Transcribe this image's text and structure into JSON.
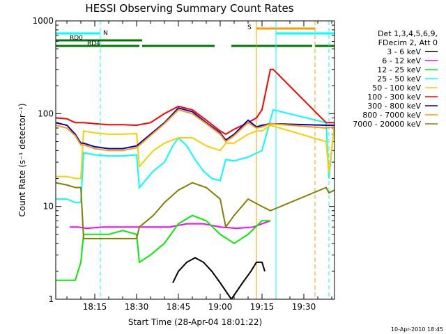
{
  "chart_data": {
    "type": "line",
    "title": "HESSI Observing Summary Count Rates",
    "xlabel": "Start Time (28-Apr-04 18:01:22)",
    "ylabel": "Count Rate (s⁻¹ detector⁻¹)",
    "y_scale": "log",
    "ylim": [
      1,
      1000
    ],
    "xlim": [
      "18:01",
      "19:41"
    ],
    "x_ticks": [
      "18:15",
      "18:30",
      "18:45",
      "19:00",
      "19:15",
      "19:30"
    ],
    "y_ticks": [
      "1",
      "10",
      "100",
      "1000"
    ],
    "footer": "10-Apr-2010 18:45",
    "legend_header": [
      "Det 1,3,4,5,6,9,",
      "FDecim 2, Att 0"
    ],
    "legend_placement": "right",
    "series": [
      {
        "name": "3 - 6 keV",
        "color": "#000000",
        "x": [
          "18:43",
          "18:45",
          "18:48",
          "18:51",
          "18:54",
          "18:57",
          "19:00",
          "19:04",
          "19:08",
          "19:11",
          "19:13",
          "19:15",
          "19:16"
        ],
        "y": [
          1.5,
          2,
          2.5,
          2.8,
          2.5,
          2,
          1.5,
          1,
          1.5,
          2,
          2.5,
          2.5,
          2
        ]
      },
      {
        "name": "6 - 12 keV",
        "color": "#ff00ff",
        "x": [
          "18:06",
          "18:09",
          "18:12",
          "18:18",
          "18:24",
          "18:30",
          "18:36",
          "18:42",
          "18:48",
          "18:54",
          "19:00",
          "19:06",
          "19:12",
          "19:15",
          "19:18"
        ],
        "y": [
          6,
          6,
          5.8,
          6,
          6,
          6,
          6,
          6,
          6.5,
          6.5,
          6,
          5.8,
          6,
          6.5,
          7
        ]
      },
      {
        "name": "12 - 25 keV",
        "color": "#00ee00",
        "x": [
          "18:01",
          "18:08",
          "18:10",
          "18:11",
          "18:15",
          "18:20",
          "18:25",
          "18:30",
          "18:31",
          "18:35",
          "18:40",
          "18:45",
          "18:50",
          "18:55",
          "19:00",
          "19:05",
          "19:10",
          "19:15",
          "19:18"
        ],
        "y": [
          1.6,
          1.6,
          2.5,
          5,
          5,
          5,
          5.5,
          5,
          2.5,
          3,
          4,
          6.5,
          8,
          7,
          5,
          4,
          5,
          7,
          7
        ]
      },
      {
        "name": "25 - 50 keV",
        "color": "#00ffff",
        "x": [
          "18:01",
          "18:05",
          "18:08",
          "18:10",
          "18:11",
          "18:15",
          "18:20",
          "18:25",
          "18:30",
          "18:31",
          "18:36",
          "18:40",
          "18:43",
          "18:45",
          "18:48",
          "18:51",
          "18:54",
          "18:57",
          "19:00",
          "19:02",
          "19:05",
          "19:10",
          "19:15",
          "19:19",
          "19:38",
          "19:39",
          "19:41"
        ],
        "y": [
          12,
          12,
          11,
          11,
          38,
          36,
          35,
          35,
          36,
          16,
          24,
          30,
          45,
          55,
          45,
          32,
          24,
          20,
          19,
          32,
          31,
          34,
          40,
          110,
          80,
          20,
          80
        ]
      },
      {
        "name": "50 - 100 keV",
        "color": "#ffcc00",
        "x": [
          "18:01",
          "18:05",
          "18:08",
          "18:10",
          "18:11",
          "18:15",
          "18:20",
          "18:25",
          "18:30",
          "18:31",
          "18:36",
          "18:40",
          "18:45",
          "18:50",
          "18:55",
          "19:00",
          "19:02",
          "19:05",
          "19:10",
          "19:13",
          "19:15",
          "19:18",
          "19:38",
          "19:39",
          "19:41"
        ],
        "y": [
          21,
          21,
          20,
          20,
          65,
          62,
          60,
          60,
          61,
          27,
          40,
          48,
          55,
          55,
          45,
          40,
          48,
          48,
          60,
          65,
          65,
          75,
          50,
          23,
          75
        ]
      },
      {
        "name": "100 - 300 keV",
        "color": "#ff0000",
        "x": [
          "18:01",
          "18:05",
          "18:08",
          "18:10",
          "18:11",
          "18:15",
          "18:20",
          "18:25",
          "18:30",
          "18:35",
          "18:40",
          "18:45",
          "18:50",
          "18:55",
          "19:00",
          "19:02",
          "19:05",
          "19:10",
          "19:13",
          "19:15",
          "19:18",
          "19:19",
          "19:38",
          "19:41"
        ],
        "y": [
          90,
          88,
          80,
          80,
          80,
          78,
          76,
          76,
          75,
          80,
          100,
          120,
          110,
          85,
          65,
          60,
          68,
          80,
          90,
          110,
          300,
          300,
          80,
          80
        ]
      },
      {
        "name": "300 - 800 keV",
        "color": "#0000cc",
        "x": [
          "18:01",
          "18:05",
          "18:08",
          "18:10",
          "18:11",
          "18:15",
          "18:20",
          "18:25",
          "18:30",
          "18:35",
          "18:40",
          "18:45",
          "18:50",
          "18:55",
          "19:00",
          "19:02",
          "19:05",
          "19:10",
          "19:13",
          "19:15",
          "19:18",
          "19:38",
          "19:41"
        ],
        "y": [
          80,
          75,
          60,
          48,
          48,
          44,
          42,
          42,
          45,
          60,
          80,
          115,
          105,
          80,
          62,
          52,
          60,
          85,
          72,
          75,
          78,
          75,
          75
        ]
      },
      {
        "name": "800 - 7000 keV",
        "color": "#ff9900",
        "x": [
          "18:01",
          "18:05",
          "18:08",
          "18:10",
          "18:11",
          "18:15",
          "18:20",
          "18:25",
          "18:30",
          "18:35",
          "18:40",
          "18:45",
          "18:50",
          "18:55",
          "19:00",
          "19:02",
          "19:05",
          "19:10",
          "19:13",
          "19:15",
          "19:18",
          "19:38",
          "19:41"
        ],
        "y": [
          75,
          70,
          58,
          46,
          46,
          42,
          40,
          40,
          43,
          58,
          78,
          110,
          100,
          78,
          60,
          50,
          58,
          80,
          70,
          72,
          78,
          70,
          72
        ]
      },
      {
        "name": "7000 - 20000 keV",
        "color": "#808000",
        "x": [
          "18:01",
          "18:05",
          "18:08",
          "18:10",
          "18:11",
          "18:15",
          "18:20",
          "18:25",
          "18:30",
          "18:31",
          "18:36",
          "18:40",
          "18:45",
          "18:50",
          "18:55",
          "19:00",
          "19:02",
          "19:05",
          "19:10",
          "19:15",
          "19:18",
          "19:38",
          "19:39",
          "19:41"
        ],
        "y": [
          18,
          17,
          16,
          16,
          4.5,
          4.5,
          4.5,
          4.5,
          4.5,
          6,
          8,
          11,
          15,
          18,
          16,
          12,
          6,
          8,
          12,
          10,
          9,
          16,
          14,
          15
        ]
      }
    ],
    "annotations": [
      {
        "label": "N",
        "color": "#00ffff",
        "x_start": "18:01",
        "x_end": "18:17"
      },
      {
        "label": "",
        "color": "#00ffff",
        "x_start": "19:20",
        "x_end": "19:41"
      },
      {
        "label": "S",
        "color": "#ff9900",
        "x_start": "19:13",
        "x_end": "19:34"
      },
      {
        "label": "RD0",
        "color": "#007700",
        "x_start": "18:01",
        "x_end": "18:32"
      },
      {
        "label": "RD4",
        "color": "#007700",
        "x_start": "18:01",
        "x_end": "19:41"
      }
    ]
  }
}
